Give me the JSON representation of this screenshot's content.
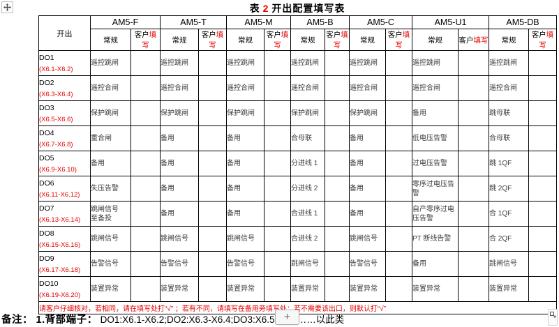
{
  "title": {
    "prefix": "表",
    "number": "2",
    "suffix": "开出配置填写表"
  },
  "table": {
    "row_header": "开出",
    "groups": [
      "AM5-F",
      "AM5-T",
      "AM5-M",
      "AM5-B",
      "AM5-C",
      "AM5-U1",
      "AM5-DB"
    ],
    "sub_normal": "常规",
    "sub_customer_black": "客户",
    "sub_customer_red": "填写",
    "rows": [
      {
        "id": "DO1",
        "terminal": "(X6.1-X6.2)",
        "values": [
          "遥控跳闸",
          "遥控跳闸",
          "遥控跳闸",
          "遥控跳闸",
          "遥控跳闸",
          "遥控跳闸",
          "遥控跳闸"
        ]
      },
      {
        "id": "DO2",
        "terminal": "(X6.3-X6.4)",
        "values": [
          "遥控合闸",
          "遥控合闸",
          "遥控合闸",
          "遥控合闸",
          "遥控合闸",
          "遥控合闸",
          "遥控合闸"
        ]
      },
      {
        "id": "DO3",
        "terminal": "(X6.5-X6.6)",
        "values": [
          "保护跳闸",
          "保护跳闸",
          "保护跳闸",
          "保护跳闸",
          "保护跳闸",
          "备用",
          "跳母联"
        ]
      },
      {
        "id": "DO4",
        "terminal": "(X6.7-X6.8)",
        "values": [
          "重合闸",
          "备用",
          "备用",
          "合母联",
          "备用",
          "低电压告警",
          "合母联"
        ]
      },
      {
        "id": "DO5",
        "terminal": "(X6.9-X6.10)",
        "values": [
          "备用",
          "备用",
          "备用",
          "分进线 1",
          "备用",
          "过电压告警",
          "跳 1QF"
        ]
      },
      {
        "id": "DO6",
        "terminal": "(X6.11-X6.12)",
        "values": [
          "失压告警",
          "备用",
          "备用",
          "分进线 2",
          "备用",
          "零序过电压告警",
          "跳 2QF"
        ]
      },
      {
        "id": "DO7",
        "terminal": "(X6.13-X6.14)",
        "values": [
          "跳闸信号\n至备投",
          "备用",
          "备用",
          "合进线 1",
          "备用",
          "自产零序过电压告警",
          "合 1QF"
        ]
      },
      {
        "id": "DO8",
        "terminal": "(X6.15-X6.16)",
        "values": [
          "跳闸信号",
          "跳闸信号",
          "跳闸信号",
          "合进线 2",
          "跳闸信号",
          "PT 断线告警",
          "合 2QF"
        ]
      },
      {
        "id": "DO9",
        "terminal": "(X6.17-X6.18)",
        "values": [
          "告警信号",
          "告警信号",
          "告警信号",
          "跳闸信号",
          "告警信号",
          "备用",
          "跳闸信号"
        ]
      },
      {
        "id": "DO10",
        "terminal": "(X6.19-X6.20)",
        "values": [
          "装置异常",
          "装置异常",
          "装置异常",
          "装置异常",
          "装置异常",
          "装置异常",
          "装置异常"
        ]
      }
    ],
    "note": "请客户仔细核对，若相同，请在填写处打“√” ；若有不同，请填写在备用旁填写处；若不需要该出口，则默认打“√”"
  },
  "footnote": {
    "head": "备注： 1.背部端子：",
    "rest": "DO1:X6.1-X6.2;DO2:X6.3-X6.4;DO3:X6.5-X6.6……以此类"
  },
  "add_button": {
    "label": "+"
  },
  "icons": {
    "move": "table-move-handle-icon",
    "resize": "table-resize-handle-icon"
  },
  "colors": {
    "accent_red": "#e60000",
    "border": "#000000",
    "value_text": "#3d3d3d"
  }
}
